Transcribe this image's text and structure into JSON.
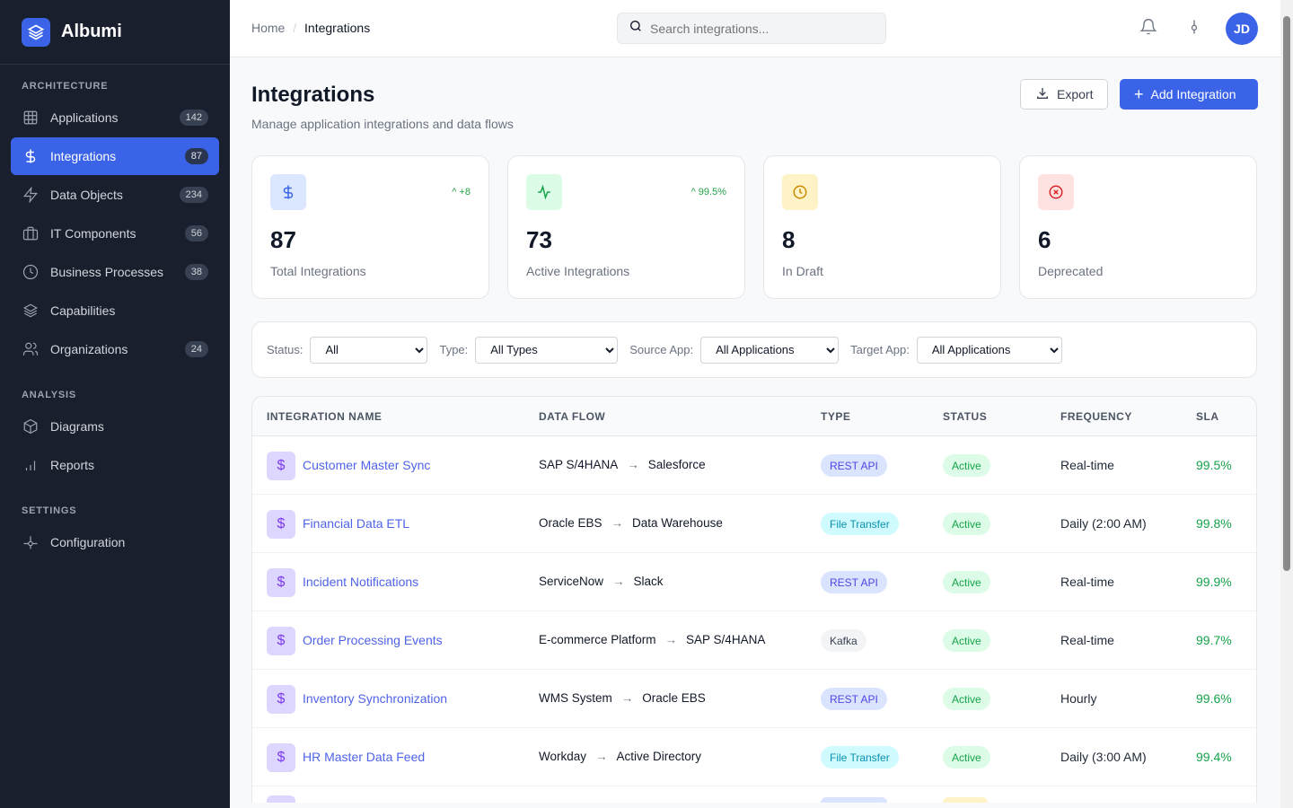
{
  "brand": {
    "name": "Albumi"
  },
  "sidebar": {
    "architecture_label": "ARCHITECTURE",
    "analysis_label": "ANALYSIS",
    "settings_label": "SETTINGS",
    "items": [
      {
        "label": "Applications",
        "count": "142"
      },
      {
        "label": "Integrations",
        "count": "87"
      },
      {
        "label": "Data Objects",
        "count": "234"
      },
      {
        "label": "IT Components",
        "count": "56"
      },
      {
        "label": "Business Processes",
        "count": "38"
      },
      {
        "label": "Capabilities"
      },
      {
        "label": "Organizations",
        "count": "24"
      },
      {
        "label": "Diagrams"
      },
      {
        "label": "Reports"
      },
      {
        "label": "Configuration"
      }
    ]
  },
  "header": {
    "breadcrumb": [
      "Home",
      "Integrations"
    ],
    "search_placeholder": "Search integrations...",
    "avatar": "JD"
  },
  "page": {
    "title": "Integrations",
    "subtitle": "Manage application integrations and data flows",
    "export_label": "Export",
    "add_label": "Add Integration"
  },
  "stats": [
    {
      "value": "87",
      "label": "Total Integrations",
      "trend": "+8",
      "color": "#3b63e8"
    },
    {
      "value": "73",
      "label": "Active Integrations",
      "trend": "99.5%",
      "color": "#16a34a"
    },
    {
      "value": "8",
      "label": "In Draft",
      "color": "#ca8a04"
    },
    {
      "value": "6",
      "label": "Deprecated",
      "color": "#dc2626"
    }
  ],
  "filters": {
    "status_label": "Status:",
    "status_value": "All",
    "type_label": "Type:",
    "type_value": "All Types",
    "source_label": "Source App:",
    "source_value": "All Applications",
    "target_label": "Target App:",
    "target_value": "All Applications"
  },
  "table": {
    "columns": [
      "INTEGRATION NAME",
      "DATA FLOW",
      "TYPE",
      "STATUS",
      "FREQUENCY",
      "SLA"
    ],
    "rows": [
      {
        "name": "Customer Master Sync",
        "source": "SAP S/4HANA",
        "target": "Salesforce",
        "type": "REST API",
        "status": "Active",
        "frequency": "Real-time",
        "sla": "99.5%"
      },
      {
        "name": "Financial Data ETL",
        "source": "Oracle EBS",
        "target": "Data Warehouse",
        "type": "File Transfer",
        "status": "Active",
        "frequency": "Daily (2:00 AM)",
        "sla": "99.8%"
      },
      {
        "name": "Incident Notifications",
        "source": "ServiceNow",
        "target": "Slack",
        "type": "REST API",
        "status": "Active",
        "frequency": "Real-time",
        "sla": "99.9%"
      },
      {
        "name": "Order Processing Events",
        "source": "E-commerce Platform",
        "target": "SAP S/4HANA",
        "type": "Kafka",
        "status": "Active",
        "frequency": "Real-time",
        "sla": "99.7%"
      },
      {
        "name": "Inventory Synchronization",
        "source": "WMS System",
        "target": "Oracle EBS",
        "type": "REST API",
        "status": "Active",
        "frequency": "Hourly",
        "sla": "99.6%"
      },
      {
        "name": "HR Master Data Feed",
        "source": "Workday",
        "target": "Active Directory",
        "type": "File Transfer",
        "status": "Active",
        "frequency": "Daily (3:00 AM)",
        "sla": "99.4%"
      }
    ]
  }
}
